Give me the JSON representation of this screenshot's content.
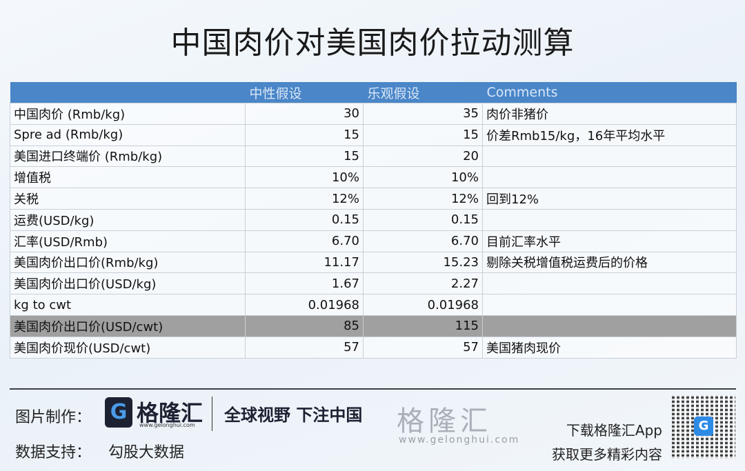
{
  "title": "中国肉价对美国肉价拉动测算",
  "table": {
    "headers": [
      "",
      "中性假设",
      "乐观假设",
      "Comments"
    ],
    "rows": [
      {
        "label": "中国肉价 (Rmb/kg)",
        "neutral": "30",
        "optimistic": "35",
        "comment": "肉价非猪价"
      },
      {
        "label": "Spre ad (Rmb/kg)",
        "neutral": "15",
        "optimistic": "15",
        "comment": "价差Rmb15/kg，16年平均水平"
      },
      {
        "label": "美国进口终端价 (Rmb/kg)",
        "neutral": "15",
        "optimistic": "20",
        "comment": ""
      },
      {
        "label": "增值税",
        "neutral": "10%",
        "optimistic": "10%",
        "comment": ""
      },
      {
        "label": "关税",
        "neutral": "12%",
        "optimistic": "12%",
        "comment": "回到12%"
      },
      {
        "label": "运费(USD/kg)",
        "neutral": "0.15",
        "optimistic": "0.15",
        "comment": ""
      },
      {
        "label": "汇率(USD/Rmb)",
        "neutral": "6.70",
        "optimistic": "6.70",
        "comment": "目前汇率水平"
      },
      {
        "label": "美国肉价出口价(Rmb/kg)",
        "neutral": "11.17",
        "optimistic": "15.23",
        "comment": "剔除关税增值税运费后的价格"
      },
      {
        "label": "美国肉价出口价(USD/kg)",
        "neutral": "1.67",
        "optimistic": "2.27",
        "comment": ""
      },
      {
        "label": "kg to cwt",
        "neutral": "0.01968",
        "optimistic": "0.01968",
        "comment": ""
      },
      {
        "label": "美国肉价出口价(USD/cwt)",
        "neutral": "85",
        "optimistic": "115",
        "comment": "",
        "highlight": true
      },
      {
        "label": "美国肉价现价(USD/cwt)",
        "neutral": "57",
        "optimistic": "57",
        "comment": "美国猪肉现价"
      }
    ]
  },
  "watermark": {
    "text": "格隆汇",
    "url": "www.gelonghui.com"
  },
  "footer": {
    "made_by_label": "图片制作：",
    "brand": "格隆汇",
    "brand_url": "www.gelonghui.com",
    "slogan": "全球视野 下注中国",
    "data_label": "数据支持：",
    "data_source": "勾股大数据",
    "download": "下载格隆汇App",
    "more": "获取更多精彩内容"
  },
  "colors": {
    "header_bg": "#4a86c8",
    "highlight_row": "#a0a0a0",
    "brand_dark": "#1d2233",
    "brand_blue": "#2d8be6"
  }
}
